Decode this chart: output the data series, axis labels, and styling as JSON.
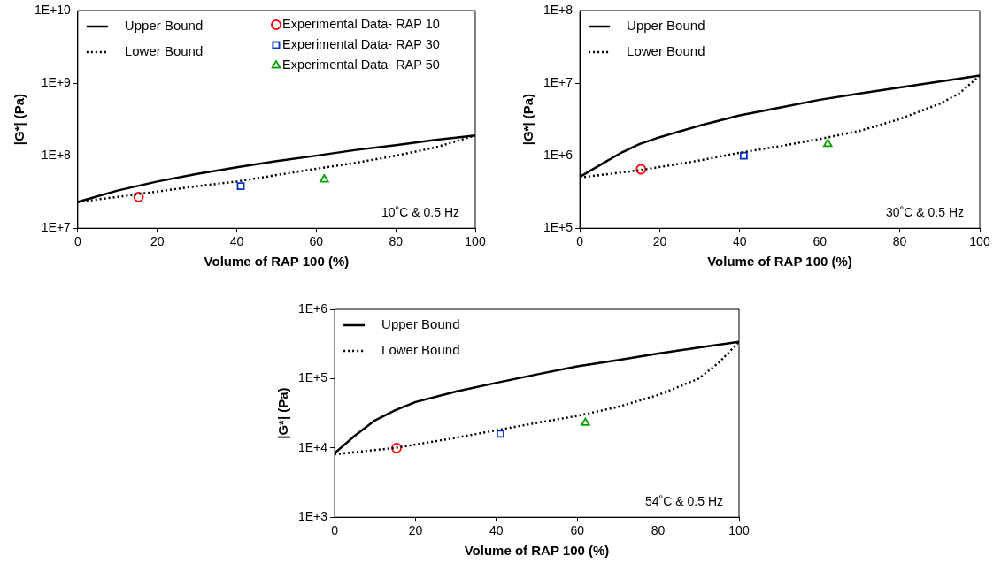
{
  "chart_data": [
    {
      "type": "line",
      "xlabel": "Volume of RAP 100 (%)",
      "ylabel": "|G*| (Pa)",
      "xlim": [
        0,
        100
      ],
      "xticks": [
        0,
        20,
        40,
        60,
        80,
        100
      ],
      "ylim": [
        10000000,
        10000000000
      ],
      "yticks": [
        {
          "value": 10000000,
          "label": "1E+7"
        },
        {
          "value": 100000000,
          "label": "1E+8"
        },
        {
          "value": 1000000000,
          "label": "1E+9"
        },
        {
          "value": 10000000000,
          "label": "1E+10"
        }
      ],
      "log": "y",
      "grid": false,
      "legend": "top",
      "annotations": [
        "10˚C & 0.5 Hz"
      ],
      "series": [
        {
          "name": "Upper Bound",
          "type": "line",
          "line_style": "solid",
          "marker": "none",
          "color": "#000000",
          "x": [
            0,
            10,
            20,
            30,
            40,
            50,
            60,
            70,
            80,
            90,
            100
          ],
          "values": [
            23000000,
            33000000,
            44000000,
            56000000,
            69000000,
            84000000,
            100000000,
            120000000,
            140000000,
            165000000,
            190000000
          ]
        },
        {
          "name": "Lower Bound",
          "type": "line",
          "line_style": "dotted",
          "marker": "none",
          "color": "#000000",
          "x": [
            0,
            10,
            20,
            30,
            40,
            50,
            60,
            70,
            80,
            90,
            100
          ],
          "values": [
            23000000,
            27000000,
            32000000,
            38000000,
            44000000,
            54000000,
            66000000,
            80000000,
            100000000,
            130000000,
            190000000
          ]
        },
        {
          "name": "Experimental Data- RAP 10",
          "type": "scatter",
          "marker": "circle",
          "color": "#ff0000",
          "x": [
            15.3
          ],
          "values": [
            27000000
          ]
        },
        {
          "name": "Experimental Data- RAP 30",
          "type": "scatter",
          "marker": "square",
          "color": "#0033cc",
          "x": [
            41
          ],
          "values": [
            38000000
          ]
        },
        {
          "name": "Experimental Data- RAP 50",
          "type": "scatter",
          "marker": "triangle",
          "color": "#00a000",
          "x": [
            62
          ],
          "values": [
            47000000
          ]
        }
      ]
    },
    {
      "type": "line",
      "xlabel": "Volume of RAP 100 (%)",
      "ylabel": "|G*| (Pa)",
      "xlim": [
        0,
        100
      ],
      "xticks": [
        0,
        20,
        40,
        60,
        80,
        100
      ],
      "ylim": [
        100000,
        100000000
      ],
      "yticks": [
        {
          "value": 100000,
          "label": "1E+5"
        },
        {
          "value": 1000000,
          "label": "1E+6"
        },
        {
          "value": 10000000,
          "label": "1E+7"
        },
        {
          "value": 100000000,
          "label": "1E+8"
        }
      ],
      "log": "y",
      "grid": false,
      "legend": "top left",
      "annotations": [
        "30˚C & 0.5 Hz"
      ],
      "series": [
        {
          "name": "Upper Bound",
          "type": "line",
          "line_style": "solid",
          "marker": "none",
          "color": "#000000",
          "x": [
            0,
            5,
            10,
            15,
            20,
            30,
            40,
            50,
            60,
            70,
            80,
            90,
            100
          ],
          "values": [
            510000,
            740000,
            1070000,
            1450000,
            1800000,
            2600000,
            3600000,
            4600000,
            5900000,
            7200000,
            8700000,
            10500000,
            12700000
          ]
        },
        {
          "name": "Lower Bound",
          "type": "line",
          "line_style": "dotted",
          "marker": "none",
          "color": "#000000",
          "x": [
            0,
            15,
            30,
            40,
            50,
            60,
            70,
            80,
            90,
            95,
            100
          ],
          "values": [
            500000,
            630000,
            860000,
            1100000,
            1350000,
            1700000,
            2200000,
            3200000,
            5200000,
            7300000,
            12700000
          ]
        },
        {
          "type": "scatter",
          "marker": "circle",
          "color": "#ff0000",
          "x": [
            15.3
          ],
          "values": [
            650000
          ]
        },
        {
          "type": "scatter",
          "marker": "square",
          "color": "#0033cc",
          "x": [
            41
          ],
          "values": [
            1000000
          ]
        },
        {
          "type": "scatter",
          "marker": "triangle",
          "color": "#00a000",
          "x": [
            62
          ],
          "values": [
            1450000
          ]
        }
      ]
    },
    {
      "type": "line",
      "xlabel": "Volume of RAP 100 (%)",
      "ylabel": "|G*| (Pa)",
      "xlim": [
        0,
        100
      ],
      "xticks": [
        0,
        20,
        40,
        60,
        80,
        100
      ],
      "ylim": [
        1000,
        1000000
      ],
      "yticks": [
        {
          "value": 1000,
          "label": "1E+3"
        },
        {
          "value": 10000,
          "label": "1E+4"
        },
        {
          "value": 100000,
          "label": "1E+5"
        },
        {
          "value": 1000000,
          "label": "1E+6"
        }
      ],
      "log": "y",
      "grid": false,
      "legend": "top left",
      "annotations": [
        "54˚C & 0.5 Hz"
      ],
      "series": [
        {
          "name": "Upper Bound",
          "type": "line",
          "line_style": "solid",
          "marker": "none",
          "color": "#000000",
          "x": [
            0,
            5,
            10,
            15,
            20,
            30,
            40,
            50,
            60,
            70,
            80,
            90,
            100
          ],
          "values": [
            8400,
            15000,
            25000,
            35000,
            46000,
            65000,
            87000,
            115000,
            150000,
            185000,
            230000,
            280000,
            340000
          ]
        },
        {
          "name": "Lower Bound",
          "type": "line",
          "line_style": "dotted",
          "marker": "none",
          "color": "#000000",
          "x": [
            0,
            15,
            30,
            40,
            50,
            60,
            70,
            80,
            90,
            95,
            100
          ],
          "values": [
            8100,
            10000,
            14000,
            18000,
            23000,
            29000,
            39000,
            58000,
            100000,
            170000,
            340000
          ]
        },
        {
          "type": "scatter",
          "marker": "circle",
          "color": "#ff0000",
          "x": [
            15.3
          ],
          "values": [
            10000
          ]
        },
        {
          "type": "scatter",
          "marker": "square",
          "color": "#0033cc",
          "x": [
            41
          ],
          "values": [
            16000
          ]
        },
        {
          "type": "scatter",
          "marker": "triangle",
          "color": "#00a000",
          "x": [
            62
          ],
          "values": [
            23000
          ]
        }
      ]
    }
  ]
}
